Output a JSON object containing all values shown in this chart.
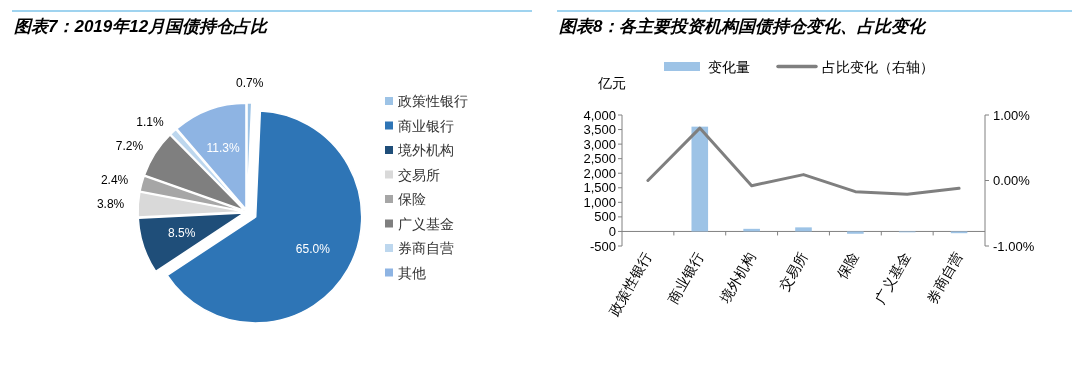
{
  "chart_data": [
    {
      "type": "pie",
      "title": "图表7：2019年12月国债持仓占比",
      "categories": [
        "政策性银行",
        "商业银行",
        "境外机构",
        "交易所",
        "保险",
        "广义基金",
        "券商自营",
        "其他"
      ],
      "values": [
        0.7,
        65.0,
        8.5,
        3.8,
        2.4,
        7.2,
        1.1,
        11.3
      ],
      "colors": [
        "#9dc3e6",
        "#2e75b6",
        "#1f4e79",
        "#d9d9d9",
        "#a6a6a6",
        "#7f7f7f",
        "#bdd7ee",
        "#8eb4e3"
      ],
      "value_labels": [
        "0.7%",
        "65.0%",
        "8.5%",
        "3.8%",
        "2.4%",
        "7.2%",
        "1.1%",
        "11.3%"
      ],
      "legend": "right"
    },
    {
      "type": "bar",
      "title": "图表8：各主要投资机构国债持仓变化、占比变化",
      "ylabel": "亿元",
      "categories": [
        "政策性银行",
        "商业银行",
        "境外机构",
        "交易所",
        "保险",
        "广义基金",
        "券商自营"
      ],
      "series": [
        {
          "name": "变化量",
          "type": "bar",
          "color": "#9dc3e6",
          "values": [
            0,
            3600,
            90,
            140,
            -80,
            -30,
            -60
          ]
        },
        {
          "name": "占比变化（右轴）",
          "type": "line",
          "axis": "y2",
          "color": "#7f7f7f",
          "values": [
            0.0,
            0.8,
            -0.08,
            0.09,
            -0.17,
            -0.21,
            -0.12
          ]
        }
      ],
      "ylim": [
        -500,
        4000
      ],
      "yticks": [
        {
          "value": -500,
          "label": "-500"
        },
        {
          "value": 0,
          "label": "0"
        },
        {
          "value": 500,
          "label": "500"
        },
        {
          "value": 1000,
          "label": "1,000"
        },
        {
          "value": 1500,
          "label": "1,500"
        },
        {
          "value": 2000,
          "label": "2,000"
        },
        {
          "value": 2500,
          "label": "2,500"
        },
        {
          "value": 3000,
          "label": "3,000"
        },
        {
          "value": 3500,
          "label": "3,500"
        },
        {
          "value": 4000,
          "label": "4,000"
        }
      ],
      "y2lim": [
        -1,
        1
      ],
      "y2ticks": [
        {
          "value": -1,
          "label": "-1.00%"
        },
        {
          "value": 0,
          "label": "0.00%"
        },
        {
          "value": 1,
          "label": "1.00%"
        }
      ],
      "legend": "top"
    }
  ]
}
